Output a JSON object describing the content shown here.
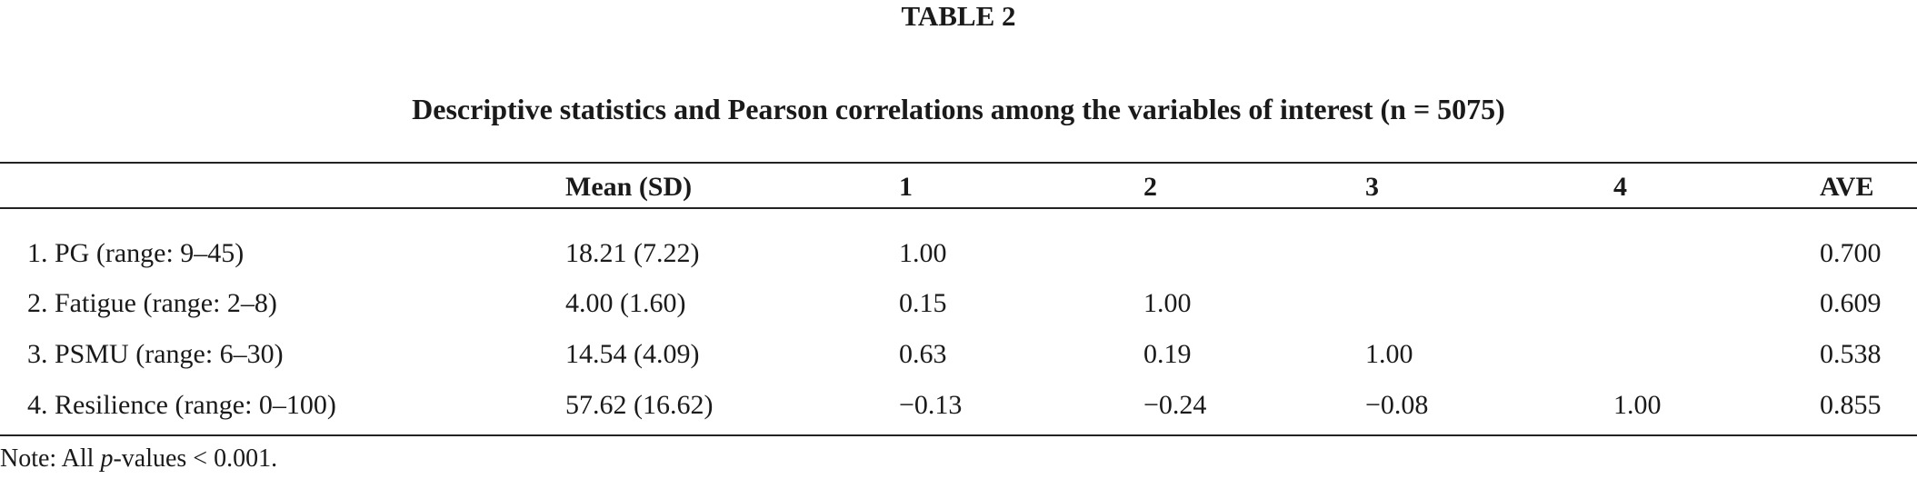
{
  "table_label": "TABLE 2",
  "caption": "Descriptive statistics and Pearson correlations among the variables of interest (n = 5075)",
  "headers": [
    "",
    "Mean (SD)",
    "1",
    "2",
    "3",
    "4",
    "AVE"
  ],
  "rows": [
    [
      "1. PG (range: 9–45)",
      "18.21 (7.22)",
      "1.00",
      "",
      "",
      "",
      "0.700"
    ],
    [
      "2. Fatigue (range: 2–8)",
      "4.00 (1.60)",
      "0.15",
      "1.00",
      "",
      "",
      "0.609"
    ],
    [
      "3. PSMU (range: 6–30)",
      "14.54 (4.09)",
      "0.63",
      "0.19",
      "1.00",
      "",
      "0.538"
    ],
    [
      "4. Resilience (range: 0–100)",
      "57.62 (16.62)",
      "−0.13",
      "−0.24",
      "−0.08",
      "1.00",
      "0.855"
    ]
  ],
  "note": {
    "prefix": "Note: All ",
    "italic": "p",
    "suffix": "-values < 0.001."
  }
}
